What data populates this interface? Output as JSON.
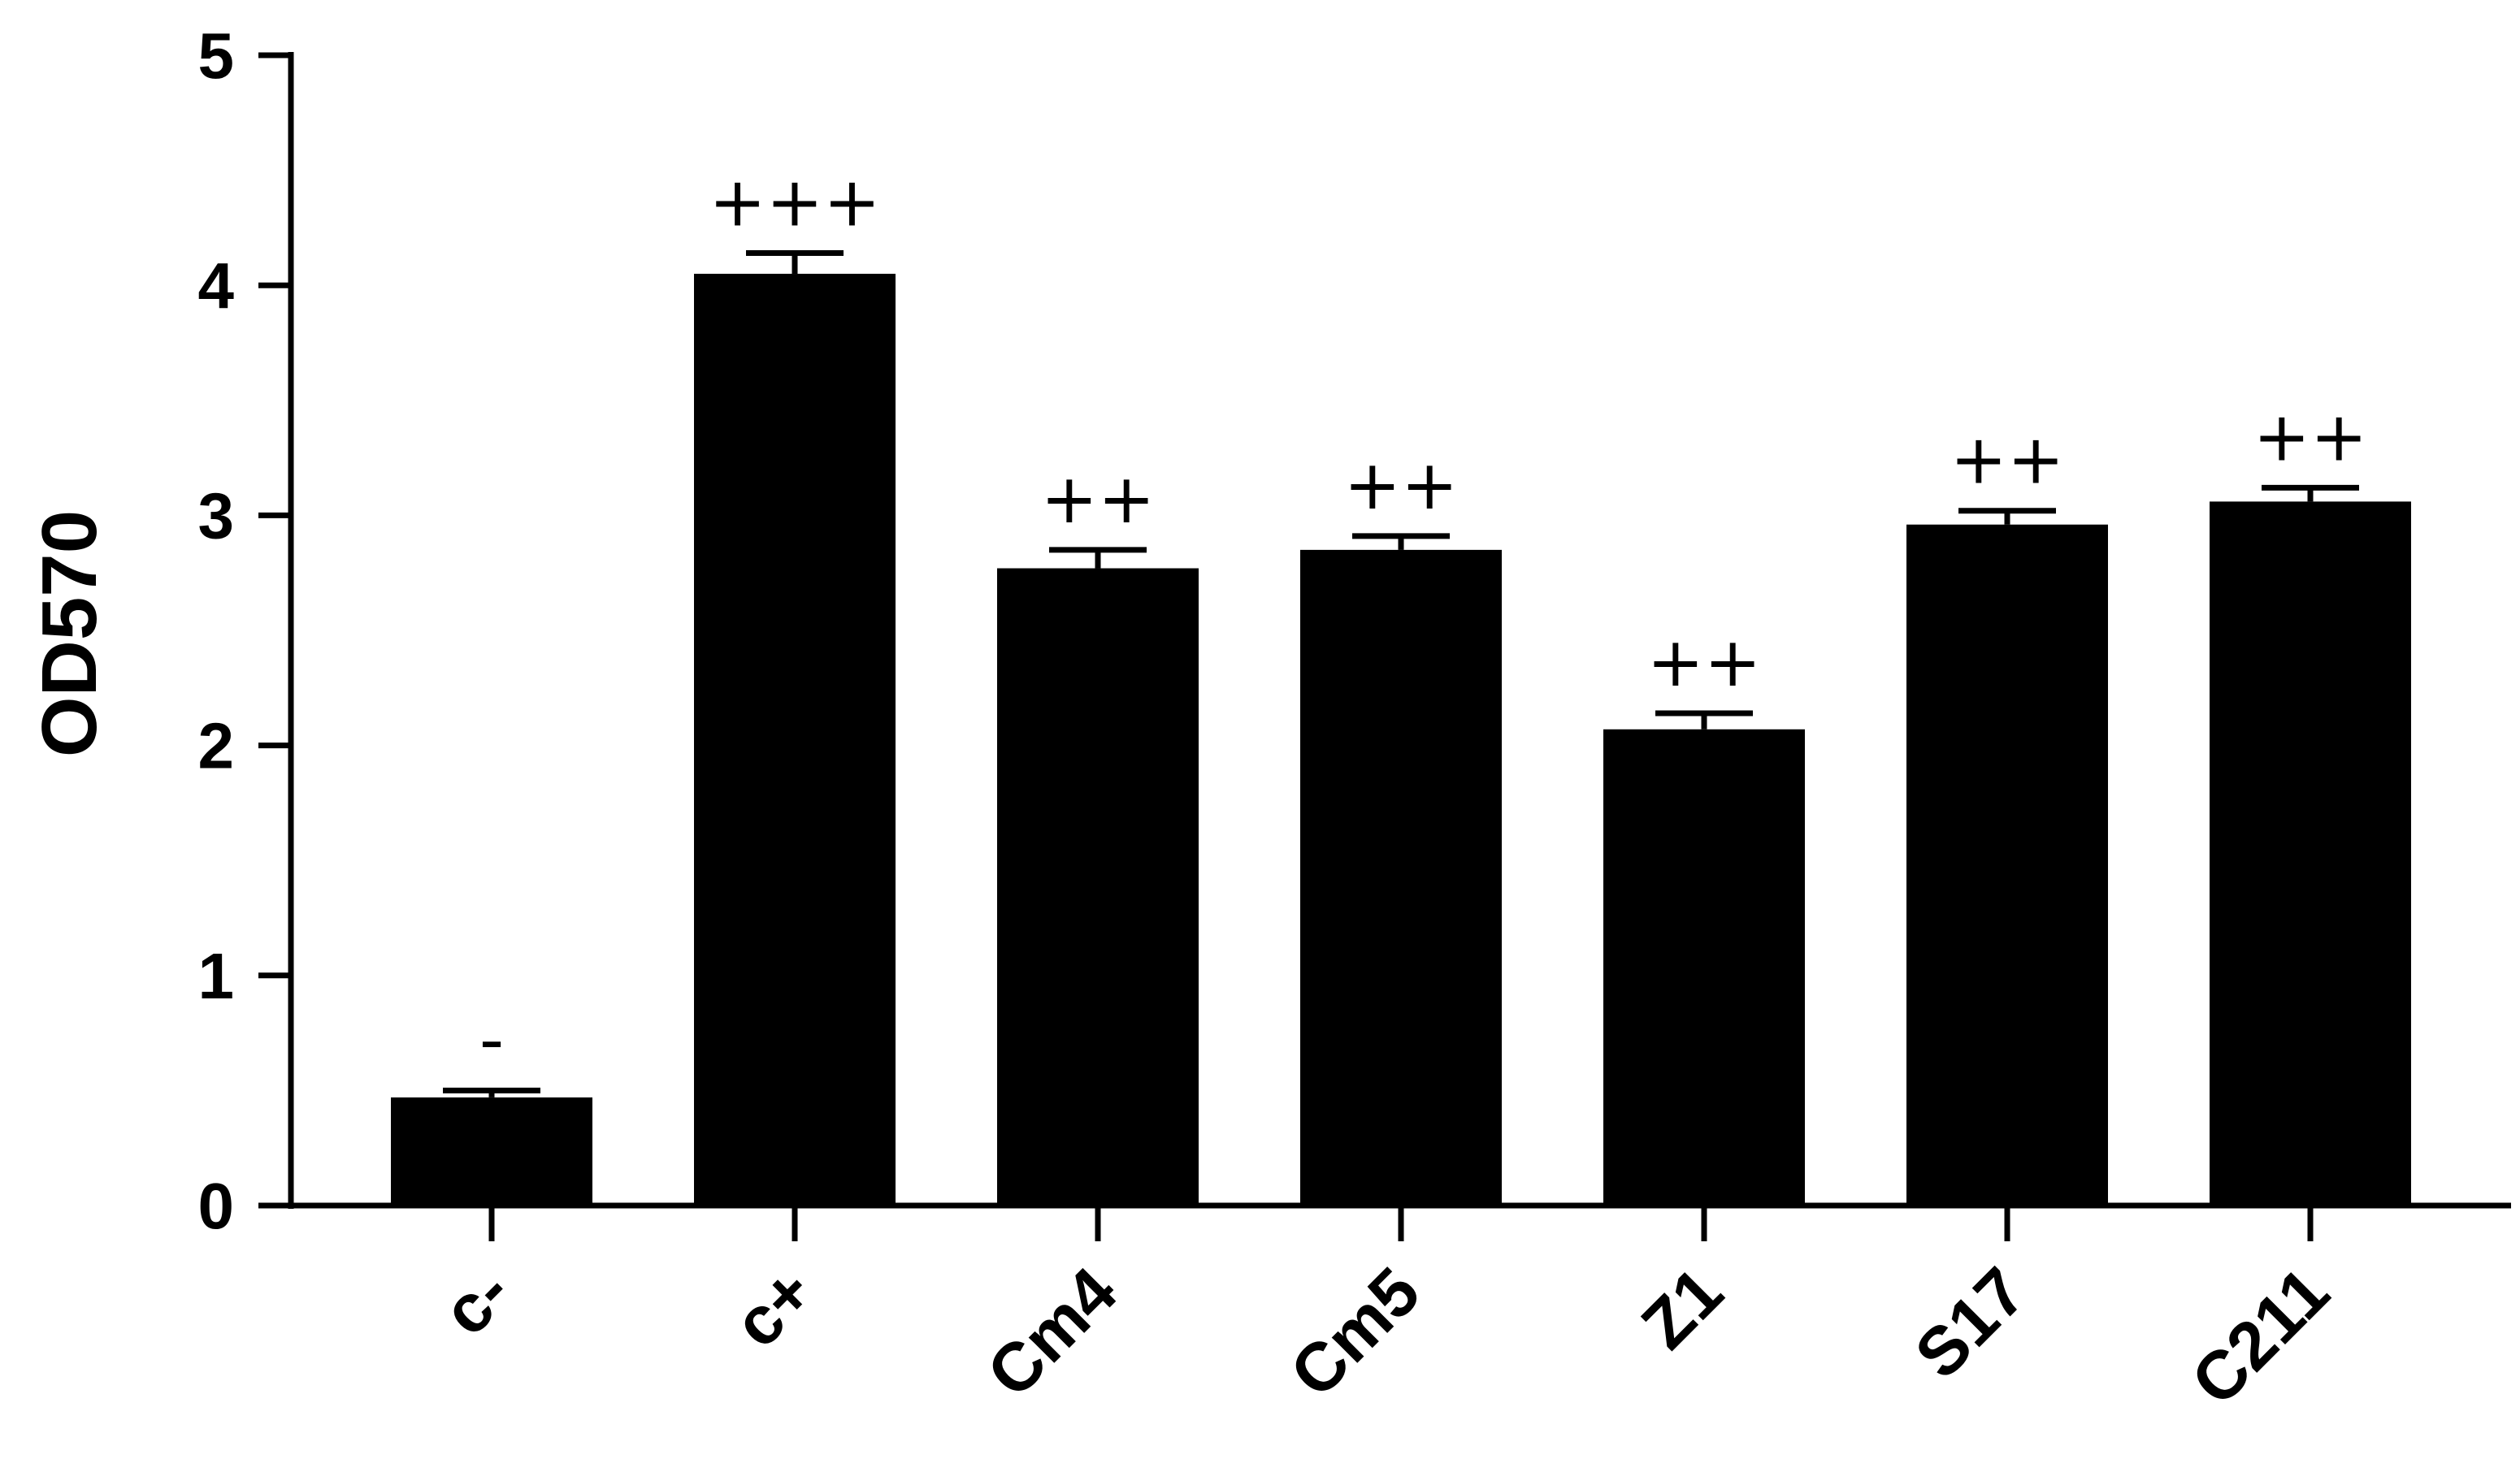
{
  "chart_data": {
    "type": "bar",
    "title": "",
    "xlabel": "",
    "ylabel": "OD570",
    "ylim": [
      0,
      5
    ],
    "yticks": [
      0,
      1,
      2,
      3,
      4,
      5
    ],
    "grid": false,
    "categories": [
      "c-",
      "c+",
      "Cm4",
      "Cm5",
      "Z1",
      "S17",
      "C211"
    ],
    "values": [
      0.47,
      4.05,
      2.77,
      2.85,
      2.07,
      2.96,
      3.06
    ],
    "errors": [
      0.03,
      0.09,
      0.08,
      0.06,
      0.07,
      0.06,
      0.06
    ],
    "annotations": [
      "-",
      "+++",
      "++",
      "++",
      "++",
      "++",
      "++"
    ],
    "bar_color": "#000000"
  }
}
